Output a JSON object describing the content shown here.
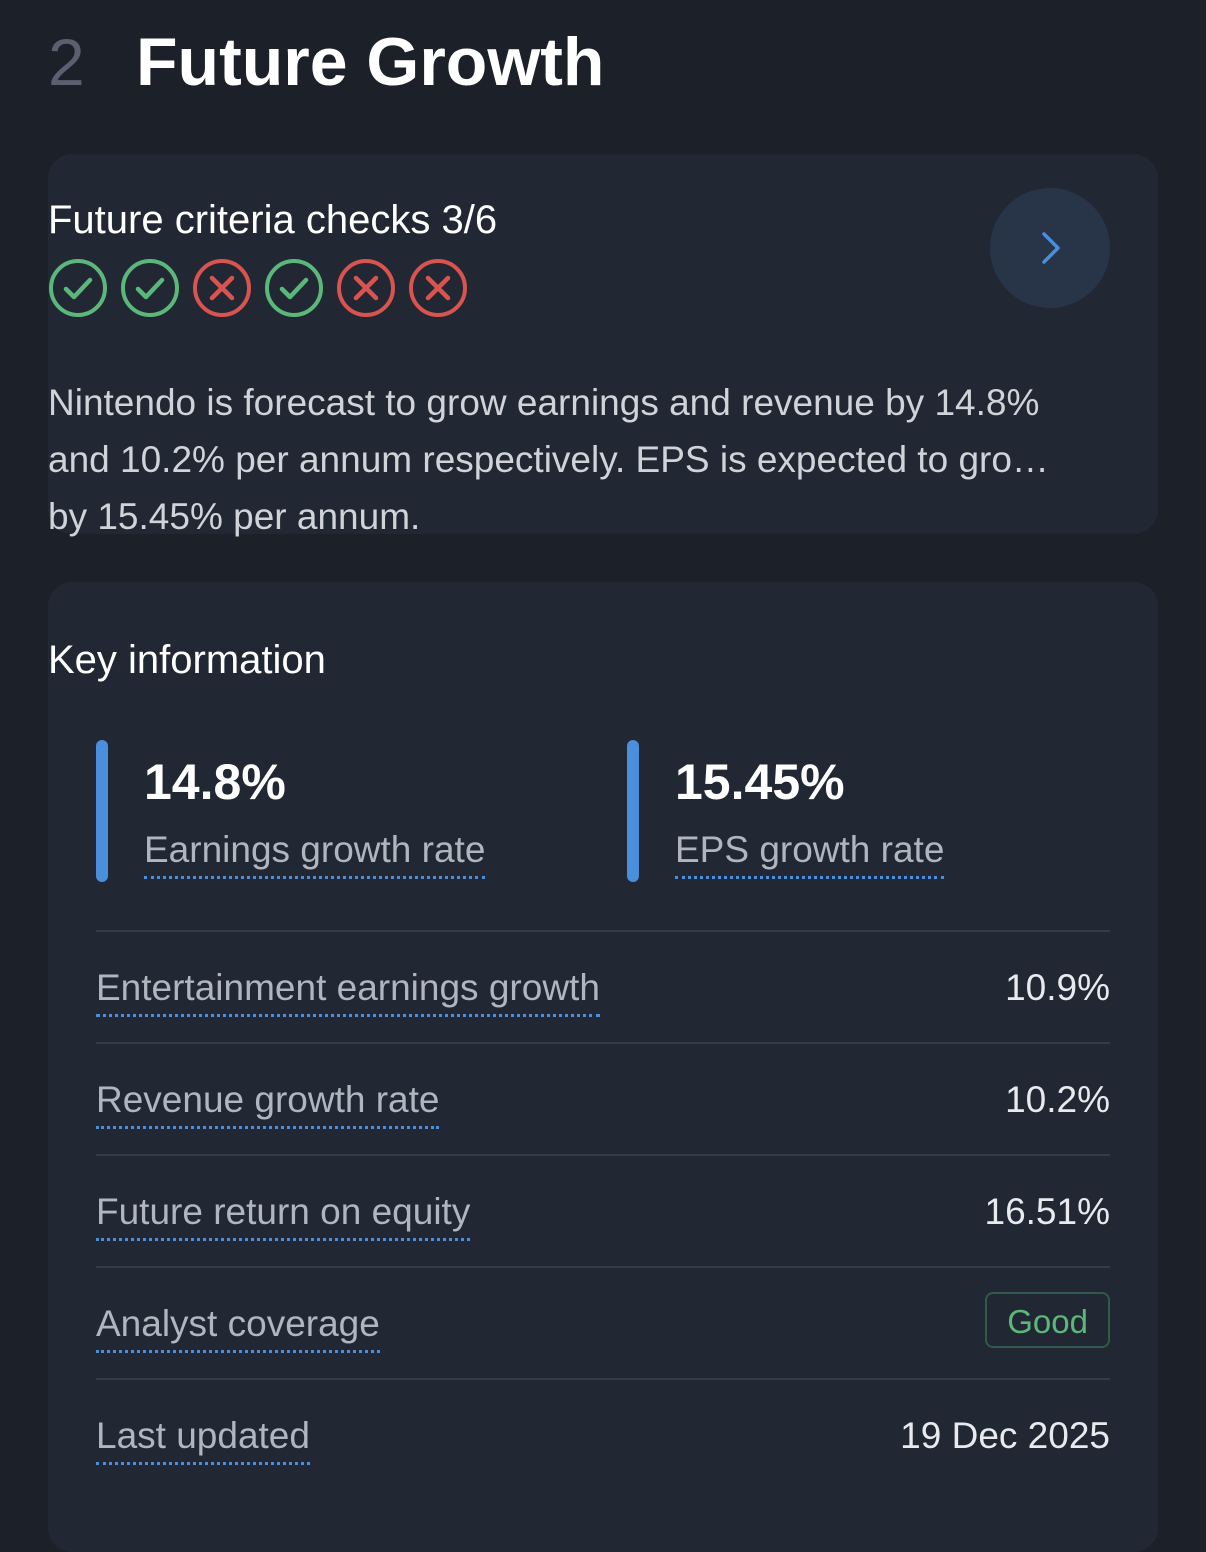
{
  "section": {
    "number": "2",
    "title": "Future Growth"
  },
  "criteria": {
    "title": "Future criteria checks 3/6",
    "checks": [
      "pass",
      "pass",
      "fail",
      "pass",
      "fail",
      "fail"
    ],
    "colors": {
      "pass": "#5cb87a",
      "fail": "#d9534f"
    },
    "nav_icon": "chevron-right-icon",
    "summary": "Nintendo is forecast to grow earnings and revenue by 14.8% and 10.2% per annum respectively. EPS is expected to grow by 15.45% per annum."
  },
  "key_info": {
    "title": "Key information",
    "stats": [
      {
        "value": "14.8%",
        "label": "Earnings growth rate"
      },
      {
        "value": "15.45%",
        "label": "EPS growth rate"
      }
    ],
    "rows": [
      {
        "label": "Entertainment earnings growth",
        "value": "10.9%"
      },
      {
        "label": "Revenue growth rate",
        "value": "10.2%"
      },
      {
        "label": "Future return on equity",
        "value": "16.51%"
      },
      {
        "label": "Analyst coverage",
        "badge": "Good"
      },
      {
        "label": "Last updated",
        "value": "19 Dec 2025"
      }
    ]
  },
  "theme": {
    "background": "#1b2029",
    "card": "#222833",
    "accent": "#4a8fdc",
    "good": "#5cb87a"
  }
}
